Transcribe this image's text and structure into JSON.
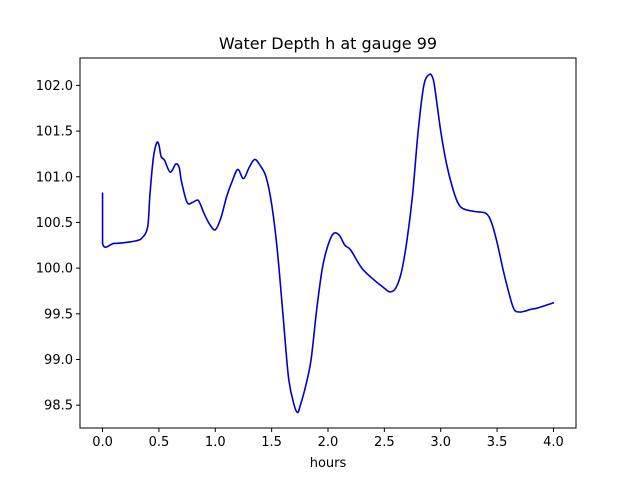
{
  "chart_data": {
    "type": "line",
    "title": "Water Depth h at gauge 99",
    "xlabel": "hours",
    "ylabel": "",
    "xlim": [
      -0.2,
      4.2
    ],
    "ylim": [
      98.25,
      102.3
    ],
    "xticks": [
      0.0,
      0.5,
      1.0,
      1.5,
      2.0,
      2.5,
      3.0,
      3.5,
      4.0
    ],
    "xtick_labels": [
      "0.0",
      "0.5",
      "1.0",
      "1.5",
      "2.0",
      "2.5",
      "3.0",
      "3.5",
      "4.0"
    ],
    "yticks": [
      98.5,
      99.0,
      99.5,
      100.0,
      100.5,
      101.0,
      101.5,
      102.0
    ],
    "ytick_labels": [
      "98.5",
      "99.0",
      "99.5",
      "100.0",
      "100.5",
      "101.0",
      "101.5",
      "102.0"
    ],
    "grid": false,
    "line_color": "#0000cc",
    "series": [
      {
        "x": [
          0.0,
          0.0,
          0.1,
          0.2,
          0.3,
          0.35,
          0.4,
          0.42,
          0.45,
          0.48,
          0.5,
          0.52,
          0.55,
          0.6,
          0.65,
          0.68,
          0.7,
          0.75,
          0.8,
          0.85,
          0.9,
          0.95,
          1.0,
          1.05,
          1.1,
          1.15,
          1.2,
          1.25,
          1.3,
          1.35,
          1.4,
          1.45,
          1.5,
          1.55,
          1.6,
          1.65,
          1.7,
          1.73,
          1.75,
          1.8,
          1.85,
          1.9,
          1.95,
          2.0,
          2.05,
          2.1,
          2.15,
          2.2,
          2.3,
          2.4,
          2.5,
          2.55,
          2.6,
          2.65,
          2.7,
          2.75,
          2.8,
          2.85,
          2.9,
          2.93,
          2.95,
          3.0,
          3.05,
          3.1,
          3.15,
          3.2,
          3.3,
          3.4,
          3.45,
          3.5,
          3.55,
          3.6,
          3.65,
          3.7,
          3.75,
          3.8,
          3.85,
          3.9,
          3.95,
          4.0
        ],
        "y": [
          100.82,
          100.27,
          100.27,
          100.28,
          100.3,
          100.33,
          100.45,
          100.8,
          101.2,
          101.37,
          101.35,
          101.22,
          101.18,
          101.05,
          101.14,
          101.1,
          100.95,
          100.72,
          100.72,
          100.74,
          100.6,
          100.48,
          100.42,
          100.55,
          100.78,
          100.95,
          101.08,
          100.98,
          101.1,
          101.19,
          101.12,
          101.0,
          100.7,
          100.2,
          99.5,
          98.8,
          98.5,
          98.42,
          98.48,
          98.7,
          99.0,
          99.55,
          100.0,
          100.25,
          100.38,
          100.36,
          100.25,
          100.2,
          100.0,
          99.88,
          99.78,
          99.74,
          99.78,
          99.95,
          100.3,
          100.8,
          101.5,
          102.0,
          102.12,
          102.08,
          101.95,
          101.5,
          101.15,
          100.9,
          100.72,
          100.65,
          100.62,
          100.6,
          100.5,
          100.28,
          100.0,
          99.75,
          99.55,
          99.52,
          99.53,
          99.55,
          99.56,
          99.58,
          99.6,
          99.62
        ]
      }
    ]
  }
}
